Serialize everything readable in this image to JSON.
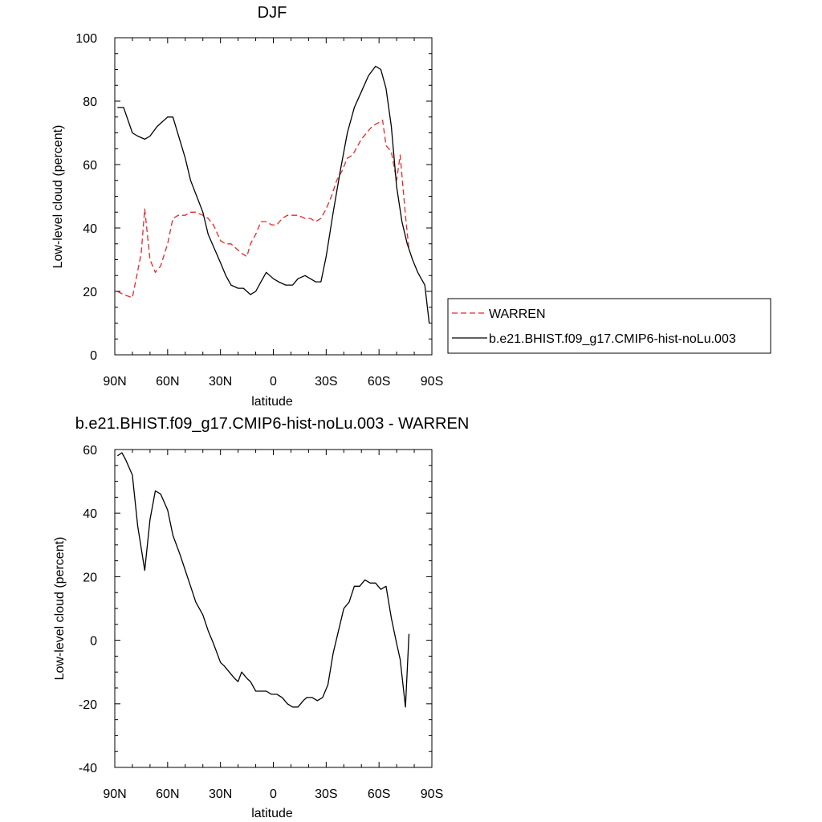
{
  "chart_data": [
    {
      "type": "line",
      "title": "DJF",
      "xlabel": "latitude",
      "ylabel": "Low-level cloud (percent)",
      "xlim": [
        90,
        -90
      ],
      "ylim": [
        0,
        100
      ],
      "x_ticks": [
        {
          "value": 90,
          "label": "90N"
        },
        {
          "value": 60,
          "label": "60N"
        },
        {
          "value": 30,
          "label": "30N"
        },
        {
          "value": 0,
          "label": "0"
        },
        {
          "value": -30,
          "label": "30S"
        },
        {
          "value": -60,
          "label": "60S"
        },
        {
          "value": -90,
          "label": "90S"
        }
      ],
      "y_ticks": [
        0,
        20,
        40,
        60,
        80,
        100
      ],
      "legend_position": "right",
      "series": [
        {
          "name": "WARREN",
          "color": "#e8262a",
          "dash": true,
          "x": [
            88.5,
            85,
            80,
            75,
            73,
            70,
            67,
            64,
            60,
            57,
            54,
            50,
            47,
            44,
            40,
            37,
            34,
            30,
            27,
            24,
            20,
            18,
            15,
            13,
            10,
            7,
            4,
            1,
            -2,
            -5,
            -8,
            -11,
            -14,
            -18,
            -21,
            -24,
            -27,
            -30,
            -33,
            -36,
            -39,
            -42,
            -45,
            -48,
            -50,
            -53,
            -56,
            -59,
            -62,
            -64,
            -67,
            -70,
            -72,
            -75,
            -77
          ],
          "values": [
            20,
            19,
            18,
            32,
            46,
            30,
            26,
            28,
            35,
            43,
            44,
            44,
            45,
            45,
            44,
            43,
            41,
            36,
            35,
            35,
            33,
            32,
            31,
            35,
            38,
            42,
            42,
            41,
            41,
            43,
            44,
            44,
            44,
            43,
            43,
            42,
            43,
            46,
            50,
            55,
            58,
            62,
            63,
            66,
            68,
            70,
            72,
            73,
            74,
            66,
            64,
            55,
            63,
            44,
            33
          ]
        },
        {
          "name": "b.e21.BHIST.f09_g17.CMIP6-hist-noLu.003",
          "color": "#000000",
          "dash": false,
          "x": [
            88.5,
            85,
            80,
            77,
            73,
            70,
            66,
            60,
            57,
            50,
            47,
            40,
            37,
            30,
            27,
            24,
            20,
            17,
            13,
            10,
            7,
            4,
            0,
            -3,
            -7,
            -11,
            -14,
            -18,
            -21,
            -24,
            -27,
            -30,
            -34,
            -38,
            -42,
            -46,
            -50,
            -54,
            -58,
            -61,
            -64,
            -67,
            -70,
            -73,
            -76,
            -79,
            -82,
            -86,
            -88.5
          ],
          "values": [
            78,
            78,
            70,
            69,
            68,
            69,
            72,
            75,
            75,
            62,
            55,
            45,
            38,
            29,
            25,
            22,
            21,
            21,
            19,
            20,
            23,
            26,
            24,
            23,
            22,
            22,
            24,
            25,
            24,
            23,
            23,
            31,
            45,
            58,
            70,
            78,
            83,
            88,
            91,
            90,
            84,
            72,
            53,
            42,
            35,
            30,
            26,
            22,
            10
          ]
        }
      ]
    },
    {
      "type": "line",
      "title": "b.e21.BHIST.f09_g17.CMIP6-hist-noLu.003 - WARREN",
      "xlabel": "latitude",
      "ylabel": "Low-level cloud (percent)",
      "xlim": [
        90,
        -90
      ],
      "ylim": [
        -40,
        60
      ],
      "x_ticks": [
        {
          "value": 90,
          "label": "90N"
        },
        {
          "value": 60,
          "label": "60N"
        },
        {
          "value": 30,
          "label": "30N"
        },
        {
          "value": 0,
          "label": "0"
        },
        {
          "value": -30,
          "label": "30S"
        },
        {
          "value": -60,
          "label": "60S"
        },
        {
          "value": -90,
          "label": "90S"
        }
      ],
      "y_ticks": [
        -40,
        -20,
        0,
        20,
        40,
        60
      ],
      "series": [
        {
          "color": "#000000",
          "dash": false,
          "x": [
            88.5,
            86,
            84,
            80,
            77,
            73,
            70,
            67,
            64,
            60,
            57,
            53,
            50,
            47,
            44,
            40,
            37,
            34,
            30,
            28,
            25,
            22,
            20,
            18,
            15,
            13,
            10,
            7,
            4,
            1,
            -2,
            -5,
            -8,
            -11,
            -14,
            -17,
            -19,
            -22,
            -25,
            -28,
            -31,
            -34,
            -37,
            -40,
            -43,
            -46,
            -49,
            -52,
            -55,
            -58,
            -61,
            -64,
            -67,
            -70,
            -72,
            -75,
            -77
          ],
          "values": [
            58,
            59,
            57,
            52,
            36,
            22,
            38,
            47,
            46,
            41,
            33,
            27,
            22,
            17,
            12,
            8,
            3,
            -1,
            -7,
            -8,
            -10,
            -12,
            -13,
            -10,
            -12,
            -13,
            -16,
            -16,
            -16,
            -17,
            -17,
            -18,
            -20,
            -21,
            -21,
            -19,
            -18,
            -18,
            -19,
            -18,
            -14,
            -4,
            3,
            10,
            12,
            17,
            17,
            19,
            18,
            18,
            16,
            17,
            7,
            -1,
            -6,
            -21,
            2
          ]
        }
      ]
    }
  ]
}
